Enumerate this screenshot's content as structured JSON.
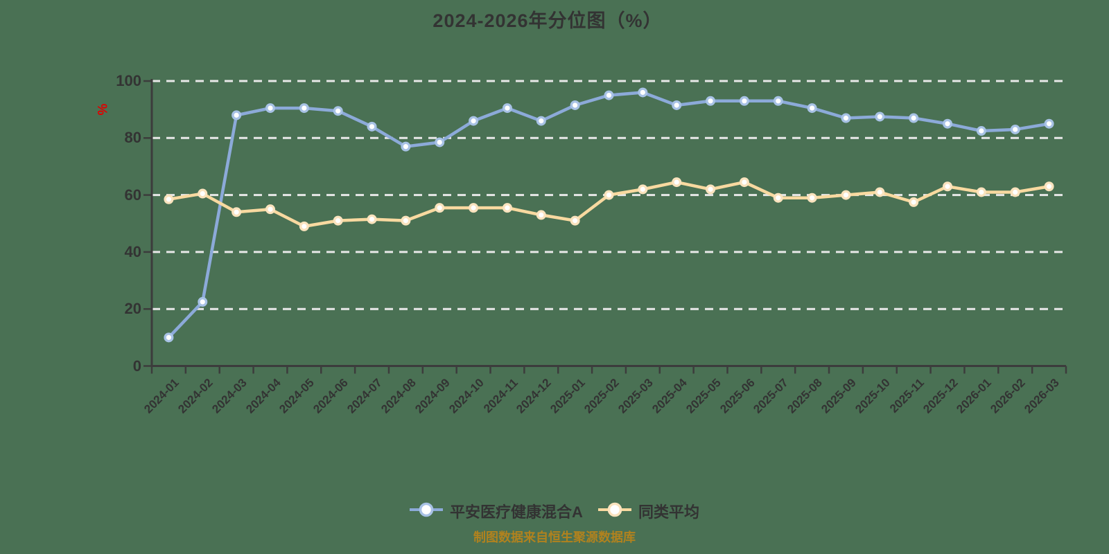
{
  "title": "2024-2026年分位图（%）",
  "y_axis_unit": "%",
  "footer_note": "制图数据来自恒生聚源数据库",
  "colors": {
    "background": "#4a7154",
    "axis": "#3c3c3c",
    "grid": "#e8e8e8",
    "text": "#333333",
    "unit_label": "#e00000",
    "footer": "#b1821e"
  },
  "legend": {
    "position": "bottom",
    "items": [
      {
        "label": "平安医疗健康混合A"
      },
      {
        "label": "同类平均"
      }
    ]
  },
  "chart_data": {
    "type": "line",
    "title": "2024-2026年分位图（%）",
    "xlabel": "",
    "ylabel": "%",
    "ylim": [
      0,
      100
    ],
    "yticks": [
      0,
      20,
      40,
      60,
      80,
      100
    ],
    "grid": "horizontal-dashed",
    "legend_position": "bottom",
    "x": [
      "2024-01",
      "2024-02",
      "2024-03",
      "2024-04",
      "2024-05",
      "2024-06",
      "2024-07",
      "2024-08",
      "2024-09",
      "2024-10",
      "2024-11",
      "2024-12",
      "2025-01",
      "2025-02",
      "2025-03",
      "2025-04",
      "2025-05",
      "2025-06",
      "2025-07",
      "2025-08",
      "2025-09",
      "2025-10",
      "2025-11",
      "2025-12",
      "2026-01",
      "2026-02",
      "2026-03"
    ],
    "series": [
      {
        "name": "平安医疗健康混合A",
        "color": "#8caad9",
        "ring": "#a8c2e5",
        "values": [
          10,
          22.5,
          88,
          90.5,
          90.5,
          89.5,
          84,
          77,
          78.5,
          86,
          90.5,
          86,
          91.5,
          95,
          96,
          91.5,
          93,
          93,
          93,
          90.5,
          87,
          87.5,
          87,
          85,
          82.5,
          83,
          85
        ]
      },
      {
        "name": "同类平均",
        "color": "#f8d9a0",
        "ring": "#fae3be",
        "values": [
          58.5,
          60.5,
          54,
          55,
          49,
          51,
          51.5,
          51,
          55.5,
          55.5,
          55.5,
          53,
          51,
          60,
          62,
          64.5,
          62,
          64.5,
          59,
          59,
          60,
          61,
          57.5,
          63,
          61,
          61,
          63
        ]
      }
    ]
  }
}
